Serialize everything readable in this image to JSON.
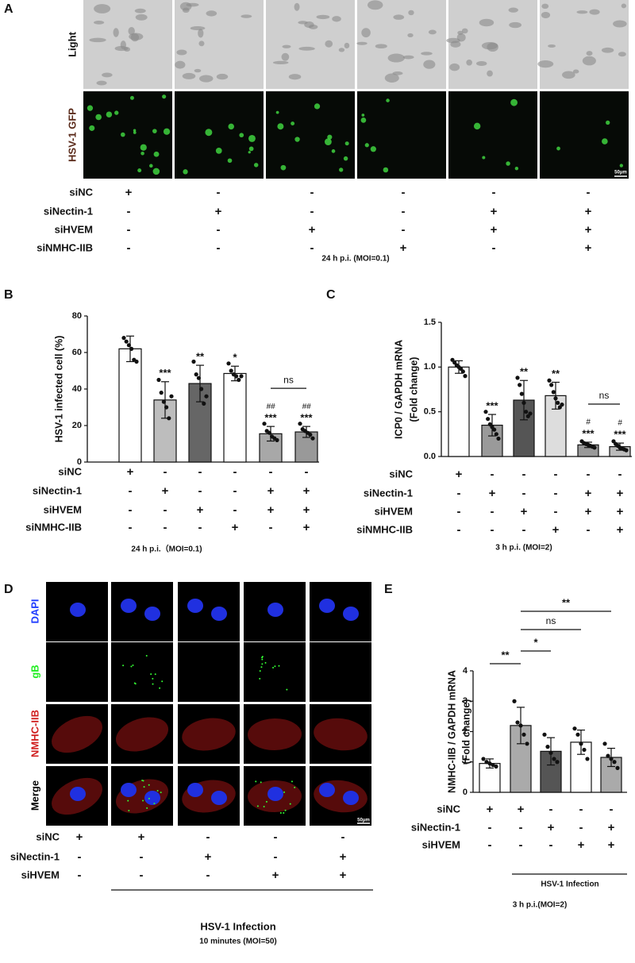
{
  "panel_labels": [
    "A",
    "B",
    "C",
    "D",
    "E"
  ],
  "panel_a": {
    "row_labels": [
      "Light",
      "HSV-1 GFP"
    ],
    "scale_bar": "50μm",
    "conditions": [
      {
        "name": "siNC",
        "signs": [
          "+",
          "-",
          "-",
          "-",
          "-",
          "-"
        ]
      },
      {
        "name": "siNectin-1",
        "signs": [
          "-",
          "+",
          "-",
          "-",
          "+",
          "+"
        ]
      },
      {
        "name": "siHVEM",
        "signs": [
          "-",
          "-",
          "+",
          "-",
          "+",
          "+"
        ]
      },
      {
        "name": "siNMHC-IIB",
        "signs": [
          "-",
          "-",
          "-",
          "+",
          "-",
          "+"
        ]
      }
    ],
    "footer": "24 h p.i.  (MOI=0.1)"
  },
  "panel_d": {
    "row_labels": [
      "DAPI",
      "gB",
      "NMHC-IIB",
      "Merge"
    ],
    "scale_bar": "50μm",
    "conditions": [
      {
        "name": "siNC",
        "signs": [
          "+",
          "+",
          "-",
          "-",
          "-"
        ]
      },
      {
        "name": "siNectin-1",
        "signs": [
          "-",
          "-",
          "+",
          "-",
          "+"
        ]
      },
      {
        "name": "siHVEM",
        "signs": [
          "-",
          "-",
          "-",
          "+",
          "+"
        ]
      }
    ],
    "group_label": "HSV-1 Infection",
    "footer": "10 minutes  (MOI=50)"
  },
  "chart_data": [
    {
      "type": "bar",
      "y_label": [
        "HSV-1 infected cell (%)"
      ],
      "ylim": [
        0,
        80
      ],
      "yticks": [
        0,
        20,
        40,
        60,
        80
      ],
      "values": [
        62,
        34,
        43,
        48.5,
        15.5,
        16.5
      ],
      "errors": [
        7,
        10,
        10,
        4,
        4,
        3
      ],
      "colors": [
        "#ffffff",
        "#bdbdbd",
        "#666666",
        "#ffffff",
        "#a8a8a8",
        "#999999"
      ],
      "points": [
        [
          68,
          66,
          64,
          62,
          56,
          55
        ],
        [
          45,
          38,
          33,
          30,
          24,
          36
        ],
        [
          55,
          48,
          46,
          40,
          32,
          36
        ],
        [
          54,
          50,
          48,
          47,
          45,
          47
        ],
        [
          21,
          17,
          16,
          14,
          13,
          12
        ],
        [
          21,
          18,
          17,
          16,
          15,
          13
        ]
      ],
      "significance": [
        null,
        "***",
        "**",
        "*",
        "***",
        "***"
      ],
      "significance_hash": [
        null,
        null,
        null,
        null,
        "##",
        "##"
      ],
      "brackets": [
        {
          "between": [
            4,
            5
          ],
          "label": "ns"
        }
      ],
      "conditions": [
        {
          "name": "siNC",
          "signs": [
            "+",
            "-",
            "-",
            "-",
            "-",
            "-"
          ]
        },
        {
          "name": "siNectin-1",
          "signs": [
            "-",
            "+",
            "-",
            "-",
            "+",
            "+"
          ]
        },
        {
          "name": "siHVEM",
          "signs": [
            "-",
            "-",
            "+",
            "-",
            "+",
            "+"
          ]
        },
        {
          "name": "siNMHC-IIB",
          "signs": [
            "-",
            "-",
            "-",
            "+",
            "-",
            "+"
          ]
        }
      ],
      "footer": "24 h p.i.（MOI=0.1)"
    },
    {
      "type": "bar",
      "y_label": [
        "ICP0 / GAPDH mRNA",
        "(Fold change)"
      ],
      "ylim": [
        0,
        1.5
      ],
      "yticks": [
        {
          "value": 0,
          "label": "0.0"
        },
        {
          "value": 0.5,
          "label": "0.5"
        },
        {
          "value": 1,
          "label": "1.0"
        },
        {
          "value": 1.5,
          "label": "1.5"
        }
      ],
      "values": [
        1.0,
        0.35,
        0.63,
        0.68,
        0.13,
        0.11
      ],
      "errors": [
        0.07,
        0.12,
        0.22,
        0.15,
        0.03,
        0.04
      ],
      "colors": [
        "#ffffff",
        "#9a9a9a",
        "#555555",
        "#dddddd",
        "#999999",
        "#bbbbbb"
      ],
      "points": [
        [
          1.08,
          1.05,
          1.02,
          1.0,
          0.98,
          0.95,
          0.9
        ],
        [
          0.5,
          0.42,
          0.36,
          0.33,
          0.3,
          0.25,
          0.2
        ],
        [
          0.88,
          0.8,
          0.7,
          0.6,
          0.5,
          0.45,
          0.48
        ],
        [
          0.85,
          0.8,
          0.72,
          0.65,
          0.6,
          0.55,
          0.58
        ],
        [
          0.17,
          0.15,
          0.14,
          0.13,
          0.12,
          0.11,
          0.1
        ],
        [
          0.17,
          0.14,
          0.12,
          0.1,
          0.09,
          0.08,
          0.07
        ]
      ],
      "significance": [
        null,
        "***",
        "**",
        "**",
        "***",
        "***"
      ],
      "significance_hash": [
        null,
        null,
        null,
        null,
        "#",
        "#"
      ],
      "brackets": [
        {
          "between": [
            4,
            5
          ],
          "label": "ns"
        }
      ],
      "conditions": [
        {
          "name": "siNC",
          "signs": [
            "+",
            "-",
            "-",
            "-",
            "-",
            "-"
          ]
        },
        {
          "name": "siNectin-1",
          "signs": [
            "-",
            "+",
            "-",
            "-",
            "+",
            "+"
          ]
        },
        {
          "name": "siHVEM",
          "signs": [
            "-",
            "-",
            "+",
            "-",
            "+",
            "+"
          ]
        },
        {
          "name": "siNMHC-IIB",
          "signs": [
            "-",
            "-",
            "-",
            "+",
            "-",
            "+"
          ]
        }
      ],
      "footer": "3 h p.i. (MOI=2)"
    },
    {
      "type": "bar",
      "y_label": [
        "NMHC-IIB / GAPDH mRNA",
        "(Fold change)"
      ],
      "ylim": [
        0,
        4
      ],
      "yticks": [
        0,
        1,
        2,
        3,
        4
      ],
      "values": [
        0.95,
        2.2,
        1.35,
        1.65,
        1.15
      ],
      "errors": [
        0.15,
        0.6,
        0.45,
        0.4,
        0.3
      ],
      "colors": [
        "#ffffff",
        "#aaaaaa",
        "#555555",
        "#ffffff",
        "#aaaaaa"
      ],
      "points": [
        [
          1.1,
          1.0,
          0.95,
          0.9,
          0.85
        ],
        [
          3.0,
          2.3,
          2.2,
          1.9,
          1.6
        ],
        [
          1.9,
          1.5,
          1.3,
          1.1,
          1.0
        ],
        [
          2.1,
          1.9,
          1.6,
          1.4,
          1.1
        ],
        [
          1.6,
          1.2,
          1.1,
          1.0,
          0.8
        ]
      ],
      "brackets": [
        {
          "between": [
            0,
            1
          ],
          "label": "**"
        },
        {
          "between": [
            1,
            2
          ],
          "label": "*"
        },
        {
          "between": [
            1,
            3
          ],
          "label": "ns"
        },
        {
          "between": [
            1,
            4
          ],
          "label": "**"
        }
      ],
      "conditions": [
        {
          "name": "siNC",
          "signs": [
            "+",
            "+",
            "-",
            "-",
            "-"
          ]
        },
        {
          "name": "siNectin-1",
          "signs": [
            "-",
            "-",
            "+",
            "-",
            "+"
          ]
        },
        {
          "name": "siHVEM",
          "signs": [
            "-",
            "-",
            "-",
            "+",
            "+"
          ]
        }
      ],
      "group_label": "HSV-1 Infection",
      "footer": "3 h p.i.(MOI=2)"
    }
  ]
}
